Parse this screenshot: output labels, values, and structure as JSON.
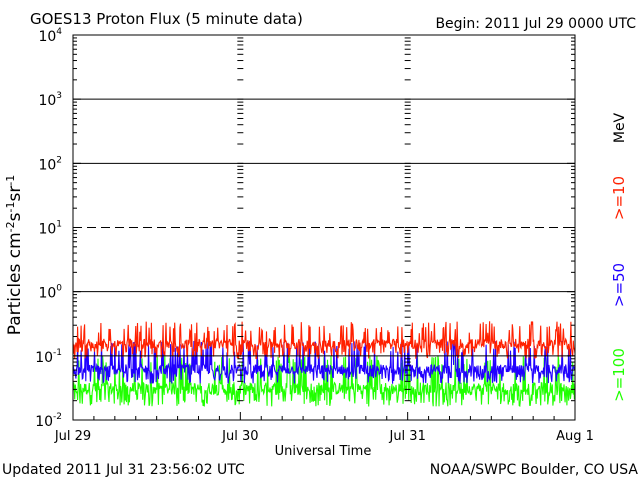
{
  "chart_data": {
    "type": "line",
    "title": "GOES13 Proton Flux (5 minute data)",
    "begin_label": "Begin: 2011 Jul 29 0000 UTC",
    "xlabel": "Universal Time",
    "ylabel": "Particles cm⁻²s⁻¹sr⁻¹",
    "y_scale": "log",
    "ylim": [
      0.01,
      10000
    ],
    "y_ticks": [
      {
        "mantissa": "10",
        "exp": "-2"
      },
      {
        "mantissa": "10",
        "exp": "-1"
      },
      {
        "mantissa": "10",
        "exp": "0"
      },
      {
        "mantissa": "10",
        "exp": "1"
      },
      {
        "mantissa": "10",
        "exp": "2"
      },
      {
        "mantissa": "10",
        "exp": "3"
      },
      {
        "mantissa": "10",
        "exp": "4"
      }
    ],
    "x_ticks": [
      "Jul 29",
      "Jul 30",
      "Jul 31",
      "Aug 1"
    ],
    "xlim_days": [
      0,
      3
    ],
    "threshold_lines": [
      {
        "y": 1000,
        "style": "solid"
      },
      {
        "y": 100,
        "style": "solid"
      },
      {
        "y": 10,
        "style": "dashed"
      },
      {
        "y": 1,
        "style": "solid"
      },
      {
        "y": 0.1,
        "style": "solid"
      }
    ],
    "units_label": "MeV",
    "series": [
      {
        "name": ">=10",
        "color": "#ff2000",
        "typical_value": 0.15,
        "noise_range": [
          0.1,
          0.3
        ]
      },
      {
        "name": ">=50",
        "color": "#2000ff",
        "typical_value": 0.06,
        "noise_range": [
          0.04,
          0.15
        ]
      },
      {
        "name": ">=100",
        "color": "#20ff00",
        "typical_value": 0.03,
        "noise_range": [
          0.018,
          0.09
        ]
      }
    ],
    "grid": false
  },
  "footer": {
    "updated": "Updated 2011 Jul 31 23:56:02 UTC",
    "credit": "NOAA/SWPC Boulder, CO USA"
  }
}
